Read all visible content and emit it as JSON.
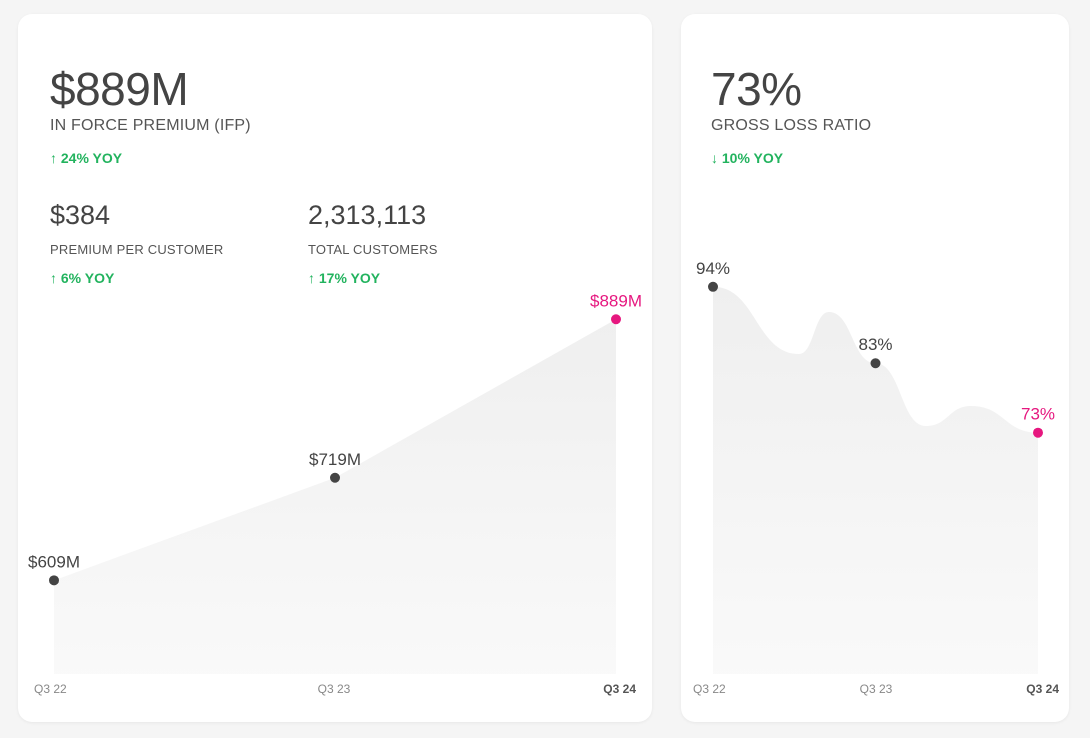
{
  "colors": {
    "highlight": "#e6177f",
    "point": "#444444",
    "positive": "#22b35e",
    "area": "#efefef"
  },
  "ifp_card": {
    "value": "$889M",
    "label": "IN FORCE PREMIUM (IFP)",
    "yoy": "↑ 24% YOY",
    "premium_per_customer": {
      "value": "$384",
      "label": "PREMIUM PER CUSTOMER",
      "yoy": "↑ 6% YOY"
    },
    "total_customers": {
      "value": "2,313,113",
      "label": "TOTAL CUSTOMERS",
      "yoy": "↑ 17% YOY"
    }
  },
  "loss_card": {
    "value": "73%",
    "label": "GROSS LOSS RATIO",
    "yoy": "↓ 10% YOY"
  },
  "chart_data": [
    {
      "type": "area",
      "x": [
        "Q3 22",
        "Q3 23",
        "Q3 24"
      ],
      "values": [
        609,
        719,
        889
      ],
      "point_labels": [
        "$609M",
        "$719M",
        "$889M"
      ],
      "unit": "$M",
      "ylim": [
        560,
        900
      ],
      "grid": false,
      "highlight_last": true
    },
    {
      "type": "area",
      "x": [
        "Q3 22",
        "Q3 23",
        "Q3 24"
      ],
      "values": [
        94,
        83,
        73
      ],
      "point_labels": [
        "94%",
        "83%",
        "73%"
      ],
      "unit": "%",
      "ylim": [
        40,
        98
      ],
      "grid": false,
      "highlight_last": true
    }
  ]
}
